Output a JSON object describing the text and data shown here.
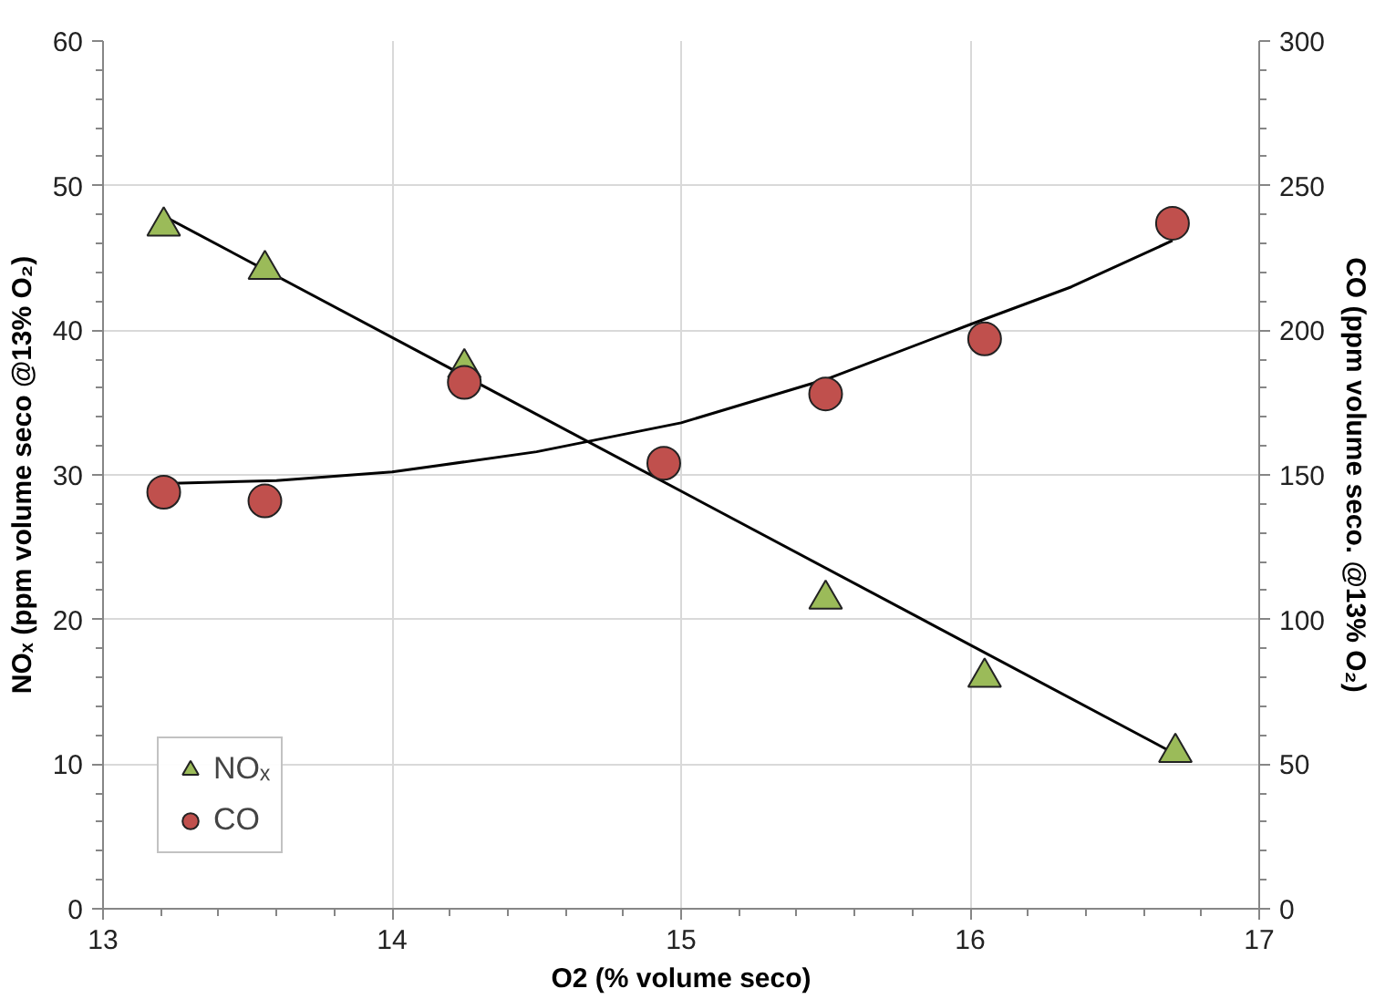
{
  "chart_data": {
    "type": "scatter",
    "xlabel": "O2 (% volume seco)",
    "ylabel": "NOₓ (ppm volume seco @13% O₂)",
    "y2label": "CO (ppm volume seco. @13% O₂)",
    "xlim": [
      13,
      17
    ],
    "xticks": [
      13,
      14,
      15,
      16,
      17
    ],
    "ylim": [
      0,
      60
    ],
    "yticks": [
      0,
      10,
      20,
      30,
      40,
      50,
      60
    ],
    "y2lim": [
      0,
      300
    ],
    "y2ticks": [
      0,
      50,
      100,
      150,
      200,
      250,
      300
    ],
    "grid": true,
    "legend": "bottom left",
    "series": [
      {
        "name": "NOₓ",
        "marker": "triangle",
        "color": "#9bbb59",
        "x": [
          13.21,
          13.56,
          14.25,
          15.5,
          16.05,
          16.71
        ],
        "values": [
          47.2,
          44.2,
          37.4,
          21.4,
          16.0,
          10.8
        ]
      },
      {
        "name": "CO",
        "marker": "circle",
        "axis": "y2",
        "color": "#c0504d",
        "x": [
          13.21,
          13.56,
          14.25,
          14.94,
          15.5,
          16.05,
          16.7
        ],
        "values": [
          144,
          141,
          182,
          154,
          178,
          197,
          237
        ]
      },
      {
        "type": "line",
        "marker": "none",
        "color": "#000000",
        "x": [
          13.21,
          16.71
        ],
        "values": [
          47.9,
          10.7
        ]
      },
      {
        "type": "line",
        "marker": "none",
        "axis": "y2",
        "color": "#000000",
        "x": [
          13.21,
          13.6,
          14,
          14.5,
          15,
          15.5,
          16,
          16.35,
          16.7
        ],
        "values": [
          147,
          148,
          151,
          158,
          168,
          183,
          202,
          215,
          231
        ]
      }
    ]
  }
}
